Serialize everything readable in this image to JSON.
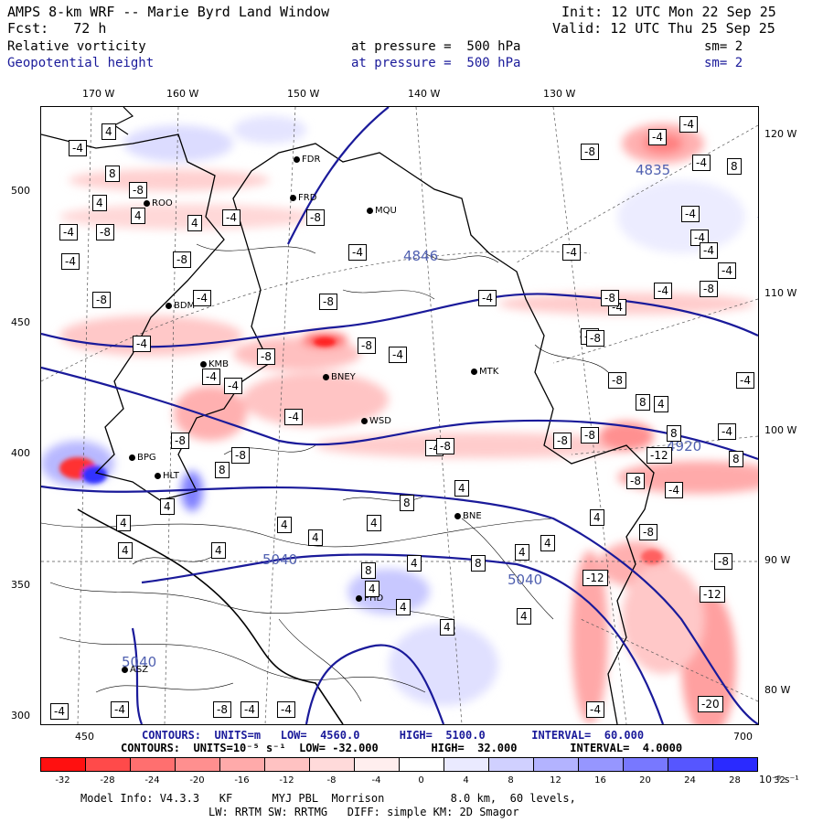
{
  "header": {
    "title": "AMPS 8-km WRF -- Marie Byrd Land Window",
    "fcst": "Fcst:   72 h",
    "init": "Init: 12 UTC Mon 22 Sep 25",
    "valid": "Valid: 12 UTC Thu 25 Sep 25",
    "field1_name": "Relative vorticity",
    "field1_level": "at pressure =  500 hPa",
    "field1_sm": "sm= 2",
    "field2_name": "Geopotential height",
    "field2_level": "at pressure =  500 hPa",
    "field2_sm": "sm= 2"
  },
  "colors": {
    "geopotential": "#1a1a9a",
    "positive_vorticity": "#e84040",
    "negative_vorticity": "#5060d0"
  },
  "axes": {
    "top_lon": [
      "170 W",
      "160 W",
      "150 W",
      "140 W",
      "130 W"
    ],
    "right_lon": [
      "120 W",
      "110 W",
      "100 W",
      "90 W",
      "80 W"
    ],
    "left_y": [
      "500",
      "450",
      "400",
      "350",
      "300"
    ],
    "bottom_x": [
      "450",
      "700"
    ]
  },
  "stations": [
    "FDR",
    "FRD",
    "MQU",
    "ROO",
    "BDM",
    "KMB",
    "BNEY",
    "MTK",
    "WSD",
    "BPG",
    "HLT",
    "BNE",
    "PHD",
    "ASZ"
  ],
  "height_labels": [
    "4835",
    "4846",
    "4920",
    "5040",
    "5040",
    "5040"
  ],
  "vort_labels": [
    "4",
    "-4",
    "8",
    "-8",
    "4",
    "-4",
    "-8",
    "4",
    "4",
    "-4",
    "-8",
    "-4",
    "-8",
    "-4",
    "-8",
    "-4",
    "-8",
    "-4",
    "-8",
    "-4",
    "-4",
    "-8",
    "-8",
    "-8",
    "-4",
    "-4",
    "-8",
    "-4",
    "-4",
    "-8",
    "-4",
    "-4",
    "-4",
    "-4",
    "-4",
    "-8",
    "-4",
    "-4",
    "4",
    "8",
    "8",
    "4",
    "4",
    "4",
    "4",
    "4",
    "4",
    "8",
    "4",
    "4",
    "4",
    "8",
    "4",
    "4",
    "4",
    "4",
    "4",
    "4",
    "8",
    "4",
    "8",
    "-12",
    "-8",
    "-8",
    "-12",
    "-12",
    "-4",
    "-8",
    "-20",
    "-4",
    "-4",
    "-4",
    "8",
    "-8",
    "-4",
    "-8",
    "-4",
    "-8",
    "-8",
    "8",
    "-4",
    "-4",
    "-4",
    "-8",
    "-4",
    "-4",
    "-4",
    "-8"
  ],
  "contour_info": {
    "height_line": "CONTOURS:  UNITS=m   LOW=  4560.0      HIGH=  5100.0       INTERVAL=  60.000",
    "vort_line": "CONTOURS:  UNITS=10⁻⁵ s⁻¹  LOW= -32.000        HIGH=  32.000        INTERVAL=  4.0000"
  },
  "colorbar": {
    "labels": [
      "-32",
      "-28",
      "-24",
      "-20",
      "-16",
      "-12",
      "-8",
      "-4",
      "0",
      "4",
      "8",
      "12",
      "16",
      "20",
      "24",
      "28",
      "32"
    ],
    "unit": "10⁻⁵ s⁻¹",
    "colors": [
      "#ff1010",
      "#ff4a4a",
      "#ff6f6f",
      "#ff8f8f",
      "#ffaaaa",
      "#ffc2c2",
      "#ffdada",
      "#ffeeee",
      "#ffffff",
      "#eaeaff",
      "#d0d0ff",
      "#b3b3ff",
      "#9696ff",
      "#7878ff",
      "#5656ff",
      "#2a2aff"
    ]
  },
  "footer": {
    "line1": "Model Info: V4.3.3   KF      MYJ PBL  Morrison          8.0 km,  60 levels,",
    "line2": "LW: RRTM SW: RRTMG   DIFF: simple KM: 2D Smagor"
  }
}
